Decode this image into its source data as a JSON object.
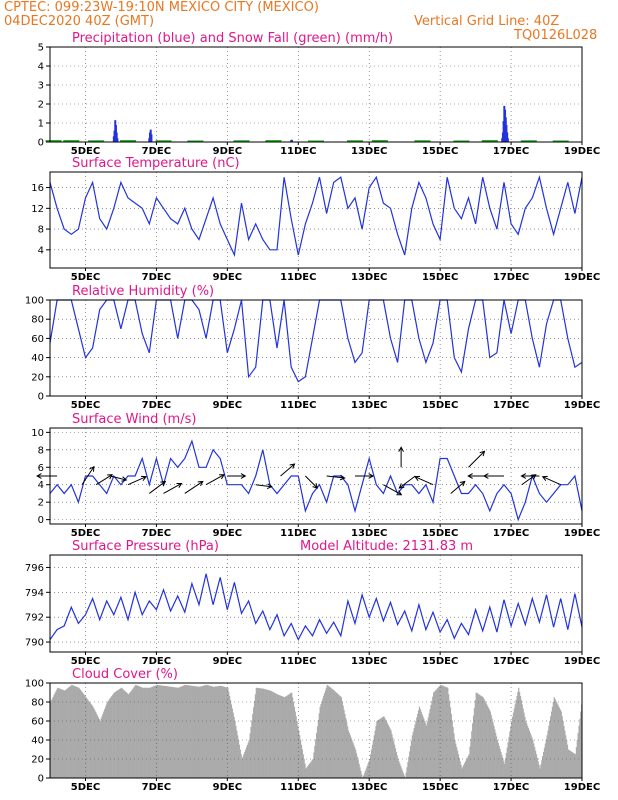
{
  "header": {
    "line1": "CPTEC:  099:23W-19:10N  MEXICO CITY (MEXICO)",
    "line2_left": "04DEC2020 40Z (GMT)",
    "line2_right": "Vertical Grid Line: 40Z",
    "line3_right": "TQ0126L028"
  },
  "x_ticks": [
    "5DEC",
    "7DEC",
    "9DEC",
    "11DEC",
    "13DEC",
    "15DEC",
    "17DEC",
    "19DEC"
  ],
  "colors": {
    "title": "#e0178a",
    "header": "#e87722",
    "line": "#2233dd",
    "snow": "#22aa22",
    "cloud": "#aaaaaa"
  },
  "chart_data": [
    {
      "type": "bar",
      "title": "Precipitation (blue) and Snow Fall (green) (mm/h)",
      "ylim": [
        0,
        5
      ],
      "yticks": [
        0,
        1,
        2,
        3,
        4,
        5
      ],
      "x_day_range": [
        4.0,
        19.0
      ],
      "series": [
        {
          "name": "Precipitation",
          "points": [
            [
              5.8,
              0.3
            ],
            [
              5.82,
              0.6
            ],
            [
              5.84,
              1.15
            ],
            [
              5.86,
              0.9
            ],
            [
              5.88,
              0.5
            ],
            [
              5.9,
              0.2
            ],
            [
              6.8,
              0.2
            ],
            [
              6.82,
              0.5
            ],
            [
              6.84,
              0.65
            ],
            [
              6.86,
              0.4
            ],
            [
              10.8,
              0.1
            ],
            [
              10.82,
              0.12
            ],
            [
              16.75,
              0.2
            ],
            [
              16.77,
              0.5
            ],
            [
              16.79,
              1.1
            ],
            [
              16.81,
              1.9
            ],
            [
              16.83,
              1.7
            ],
            [
              16.85,
              1.3
            ],
            [
              16.87,
              0.9
            ],
            [
              16.89,
              0.5
            ],
            [
              16.91,
              0.2
            ]
          ]
        },
        {
          "name": "Snow Fall",
          "points": [
            [
              4.1,
              0.05
            ],
            [
              4.6,
              0.05
            ],
            [
              5.3,
              0.04
            ],
            [
              6.2,
              0.05
            ],
            [
              7.2,
              0.04
            ],
            [
              8.1,
              0.03
            ],
            [
              9.4,
              0.04
            ],
            [
              10.3,
              0.05
            ],
            [
              11.5,
              0.03
            ],
            [
              12.6,
              0.04
            ],
            [
              13.3,
              0.05
            ],
            [
              14.5,
              0.04
            ],
            [
              15.6,
              0.03
            ],
            [
              16.4,
              0.05
            ],
            [
              17.5,
              0.04
            ],
            [
              18.4,
              0.03
            ]
          ]
        }
      ]
    },
    {
      "type": "line",
      "title": "Surface Temperature (nC)",
      "ylim": [
        0.5,
        19
      ],
      "yticks": [
        4,
        8,
        12,
        16
      ],
      "x_day_range": [
        4.0,
        19.0
      ],
      "x": [
        4.0,
        4.2,
        4.4,
        4.6,
        4.8,
        5.0,
        5.2,
        5.4,
        5.6,
        5.8,
        6.0,
        6.2,
        6.4,
        6.6,
        6.8,
        7.0,
        7.2,
        7.4,
        7.6,
        7.8,
        8.0,
        8.2,
        8.4,
        8.6,
        8.8,
        9.0,
        9.2,
        9.4,
        9.6,
        9.8,
        10.0,
        10.2,
        10.4,
        10.6,
        10.8,
        11.0,
        11.2,
        11.4,
        11.6,
        11.8,
        12.0,
        12.2,
        12.4,
        12.6,
        12.8,
        13.0,
        13.2,
        13.4,
        13.6,
        13.8,
        14.0,
        14.2,
        14.4,
        14.6,
        14.8,
        15.0,
        15.2,
        15.4,
        15.6,
        15.8,
        16.0,
        16.2,
        16.4,
        16.6,
        16.8,
        17.0,
        17.2,
        17.4,
        17.6,
        17.8,
        18.0,
        18.2,
        18.4,
        18.6,
        18.8,
        19.0
      ],
      "values": [
        17,
        12,
        8,
        7,
        8,
        14,
        17,
        10,
        8,
        12,
        17,
        14,
        13,
        12,
        9,
        14,
        12,
        10,
        9,
        12,
        8,
        6,
        10,
        14,
        9,
        6,
        3,
        13,
        6,
        9,
        6,
        4,
        4,
        18,
        10,
        3,
        9,
        13,
        18,
        11,
        17,
        18,
        12,
        14,
        8,
        16,
        18,
        13,
        12,
        7,
        3,
        12,
        17,
        14,
        9,
        6,
        18,
        12,
        10,
        14,
        9,
        18,
        12,
        8,
        17,
        9,
        7,
        12,
        14,
        18,
        12,
        7,
        12,
        17,
        11,
        18
      ]
    },
    {
      "type": "line",
      "title": "Relative Humidity (%)",
      "ylim": [
        0,
        100
      ],
      "yticks": [
        0,
        20,
        40,
        60,
        80,
        100
      ],
      "x_day_range": [
        4.0,
        19.0
      ],
      "x": [
        4.0,
        4.2,
        4.4,
        4.6,
        4.8,
        5.0,
        5.2,
        5.4,
        5.6,
        5.8,
        6.0,
        6.2,
        6.4,
        6.6,
        6.8,
        7.0,
        7.2,
        7.4,
        7.6,
        7.8,
        8.0,
        8.2,
        8.4,
        8.6,
        8.8,
        9.0,
        9.2,
        9.4,
        9.6,
        9.8,
        10.0,
        10.2,
        10.4,
        10.6,
        10.8,
        11.0,
        11.2,
        11.4,
        11.6,
        11.8,
        12.0,
        12.2,
        12.4,
        12.6,
        12.8,
        13.0,
        13.2,
        13.4,
        13.6,
        13.8,
        14.0,
        14.2,
        14.4,
        14.6,
        14.8,
        15.0,
        15.2,
        15.4,
        15.6,
        15.8,
        16.0,
        16.2,
        16.4,
        16.6,
        16.8,
        17.0,
        17.2,
        17.4,
        17.6,
        17.8,
        18.0,
        18.2,
        18.4,
        18.6,
        18.8,
        19.0
      ],
      "values": [
        55,
        100,
        100,
        100,
        70,
        40,
        50,
        90,
        100,
        100,
        70,
        100,
        100,
        65,
        45,
        100,
        100,
        100,
        60,
        100,
        100,
        90,
        60,
        100,
        100,
        45,
        70,
        100,
        20,
        30,
        100,
        100,
        50,
        100,
        30,
        15,
        20,
        60,
        100,
        100,
        100,
        100,
        60,
        35,
        45,
        100,
        100,
        100,
        60,
        35,
        100,
        100,
        60,
        35,
        55,
        100,
        100,
        40,
        25,
        70,
        100,
        100,
        40,
        45,
        100,
        65,
        100,
        100,
        60,
        30,
        75,
        100,
        100,
        60,
        30,
        35
      ]
    },
    {
      "type": "line",
      "title": "Surface Wind (m/s)",
      "ylim": [
        -0.5,
        10.5
      ],
      "yticks": [
        0,
        2,
        4,
        6,
        8,
        10
      ],
      "x_day_range": [
        4.0,
        19.0
      ],
      "x": [
        4.0,
        4.2,
        4.4,
        4.6,
        4.8,
        5.0,
        5.2,
        5.4,
        5.6,
        5.8,
        6.0,
        6.2,
        6.4,
        6.6,
        6.8,
        7.0,
        7.2,
        7.4,
        7.6,
        7.8,
        8.0,
        8.2,
        8.4,
        8.6,
        8.8,
        9.0,
        9.2,
        9.4,
        9.6,
        9.8,
        10.0,
        10.2,
        10.4,
        10.6,
        10.8,
        11.0,
        11.2,
        11.4,
        11.6,
        11.8,
        12.0,
        12.2,
        12.4,
        12.6,
        12.8,
        13.0,
        13.2,
        13.4,
        13.6,
        13.8,
        14.0,
        14.2,
        14.4,
        14.6,
        14.8,
        15.0,
        15.2,
        15.4,
        15.6,
        15.8,
        16.0,
        16.2,
        16.4,
        16.6,
        16.8,
        17.0,
        17.2,
        17.4,
        17.6,
        17.8,
        18.0,
        18.2,
        18.4,
        18.6,
        18.8,
        19.0
      ],
      "values": [
        3,
        4,
        3,
        4,
        2,
        5,
        5,
        4,
        3,
        5,
        4,
        5,
        5,
        7,
        4,
        7,
        4,
        7,
        6,
        7,
        9,
        6,
        6,
        8,
        7,
        4,
        4,
        4,
        3,
        5,
        8,
        4,
        3,
        4,
        5,
        5,
        1,
        3,
        4,
        2,
        5,
        5,
        4,
        1,
        4,
        7,
        4,
        3,
        5,
        3,
        4,
        4,
        3,
        4,
        2,
        7,
        7,
        5,
        3,
        3,
        4,
        3,
        1,
        3,
        4,
        3,
        0,
        2,
        5,
        3,
        2,
        3,
        4,
        4,
        5,
        1
      ]
    },
    {
      "type": "line",
      "title": "Surface Pressure (hPa)",
      "subtitle": "Model Altitude: 2131.83 m",
      "ylim": [
        789.2,
        797
      ],
      "yticks": [
        790,
        792,
        794,
        796
      ],
      "x_day_range": [
        4.0,
        19.0
      ],
      "x": [
        4.0,
        4.2,
        4.4,
        4.6,
        4.8,
        5.0,
        5.2,
        5.4,
        5.6,
        5.8,
        6.0,
        6.2,
        6.4,
        6.6,
        6.8,
        7.0,
        7.2,
        7.4,
        7.6,
        7.8,
        8.0,
        8.2,
        8.4,
        8.6,
        8.8,
        9.0,
        9.2,
        9.4,
        9.6,
        9.8,
        10.0,
        10.2,
        10.4,
        10.6,
        10.8,
        11.0,
        11.2,
        11.4,
        11.6,
        11.8,
        12.0,
        12.2,
        12.4,
        12.6,
        12.8,
        13.0,
        13.2,
        13.4,
        13.6,
        13.8,
        14.0,
        14.2,
        14.4,
        14.6,
        14.8,
        15.0,
        15.2,
        15.4,
        15.6,
        15.8,
        16.0,
        16.2,
        16.4,
        16.6,
        16.8,
        17.0,
        17.2,
        17.4,
        17.6,
        17.8,
        18.0,
        18.2,
        18.4,
        18.6,
        18.8,
        19.0
      ],
      "values": [
        790.2,
        791,
        791.3,
        792.8,
        791.5,
        792.2,
        793.5,
        791.8,
        793.3,
        792.2,
        793.6,
        791.8,
        794,
        792.2,
        793.3,
        792.6,
        794.2,
        792.5,
        793.7,
        792.4,
        794.7,
        793,
        795.5,
        793,
        795.2,
        792.6,
        794.8,
        792.3,
        793.3,
        791.5,
        792.5,
        791,
        792.2,
        790.5,
        791.5,
        790.2,
        791.3,
        790.5,
        791.8,
        790.7,
        791.6,
        790.5,
        793.3,
        791.5,
        793.8,
        792,
        793.5,
        791.7,
        793.2,
        791.4,
        792.5,
        790.9,
        793,
        791,
        792.4,
        790.8,
        791.8,
        790.3,
        791.5,
        790.6,
        792.6,
        790.9,
        792.8,
        790.8,
        793.4,
        791.3,
        793.1,
        791.4,
        793.5,
        791.6,
        793.8,
        791.2,
        793.5,
        791,
        793.9,
        791.2
      ]
    },
    {
      "type": "area",
      "title": "Cloud Cover (%)",
      "ylim": [
        0,
        100
      ],
      "yticks": [
        0,
        20,
        40,
        60,
        80,
        100
      ],
      "x_day_range": [
        4.0,
        19.0
      ],
      "x": [
        4.0,
        4.2,
        4.4,
        4.6,
        4.8,
        5.0,
        5.2,
        5.4,
        5.6,
        5.8,
        6.0,
        6.2,
        6.4,
        6.6,
        6.8,
        7.0,
        7.2,
        7.4,
        7.6,
        7.8,
        8.0,
        8.2,
        8.4,
        8.6,
        8.8,
        9.0,
        9.2,
        9.4,
        9.6,
        9.8,
        10.0,
        10.2,
        10.4,
        10.6,
        10.8,
        11.0,
        11.2,
        11.4,
        11.6,
        11.8,
        12.0,
        12.2,
        12.4,
        12.6,
        12.8,
        13.0,
        13.2,
        13.4,
        13.6,
        13.8,
        14.0,
        14.2,
        14.4,
        14.6,
        14.8,
        15.0,
        15.2,
        15.4,
        15.6,
        15.8,
        16.0,
        16.2,
        16.4,
        16.6,
        16.8,
        17.0,
        17.2,
        17.4,
        17.6,
        17.8,
        18.0,
        18.2,
        18.4,
        18.6,
        18.8,
        19.0
      ],
      "values": [
        80,
        95,
        92,
        98,
        95,
        85,
        75,
        60,
        80,
        90,
        95,
        88,
        98,
        95,
        95,
        98,
        97,
        96,
        95,
        98,
        97,
        96,
        98,
        96,
        97,
        95,
        60,
        20,
        40,
        95,
        94,
        92,
        88,
        85,
        90,
        50,
        10,
        20,
        75,
        98,
        92,
        85,
        50,
        30,
        0,
        20,
        60,
        65,
        50,
        20,
        0,
        45,
        75,
        55,
        90,
        98,
        95,
        40,
        10,
        25,
        90,
        85,
        70,
        40,
        15,
        60,
        95,
        60,
        40,
        10,
        45,
        85,
        70,
        30,
        25,
        85
      ]
    }
  ]
}
